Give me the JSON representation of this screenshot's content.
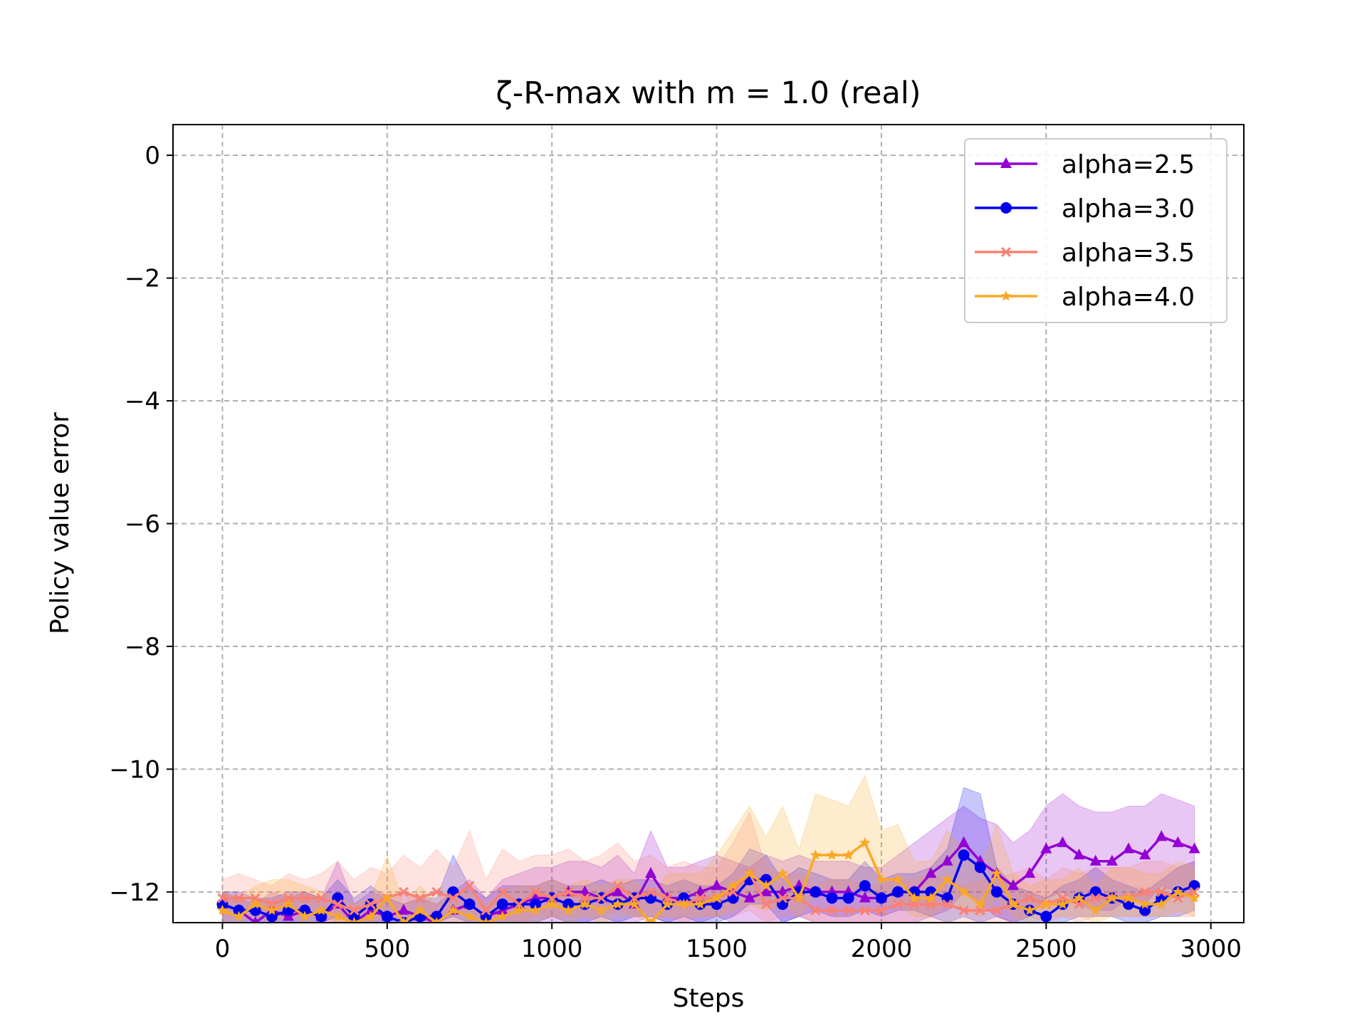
{
  "chart_data": {
    "type": "line",
    "title": "ζ-R-max with m = 1.0 (real)",
    "xlabel": "Steps",
    "ylabel": "Policy value error",
    "xlim": [
      -150,
      3100
    ],
    "ylim": [
      -12.5,
      0.5
    ],
    "xticks": [
      0,
      500,
      1000,
      1500,
      2000,
      2500,
      3000
    ],
    "xtick_labels": [
      "0",
      "500",
      "1000",
      "1500",
      "2000",
      "2500",
      "3000"
    ],
    "yticks": [
      0,
      -2,
      -4,
      -6,
      -8,
      -10,
      -12
    ],
    "ytick_labels": [
      "0",
      "−2",
      "−4",
      "−6",
      "−8",
      "−10",
      "−12"
    ],
    "grid": true,
    "legend_position": "top-right",
    "x": [
      0,
      50,
      100,
      150,
      200,
      250,
      300,
      350,
      400,
      450,
      500,
      550,
      600,
      650,
      700,
      750,
      800,
      850,
      900,
      950,
      1000,
      1050,
      1100,
      1150,
      1200,
      1250,
      1300,
      1350,
      1400,
      1450,
      1500,
      1550,
      1600,
      1650,
      1700,
      1750,
      1800,
      1850,
      1900,
      1950,
      2000,
      2050,
      2100,
      2150,
      2200,
      2250,
      2300,
      2350,
      2400,
      2450,
      2500,
      2550,
      2600,
      2650,
      2700,
      2750,
      2800,
      2850,
      2900,
      2950
    ],
    "series": [
      {
        "name": "alpha=2.5",
        "color": "#9400D3",
        "marker": "triangle",
        "values": [
          -12.2,
          -12.3,
          -12.5,
          -12.3,
          -12.4,
          -12.3,
          -12.4,
          -12.2,
          -12.5,
          -12.3,
          -12.4,
          -12.3,
          -12.4,
          -12.5,
          -12.3,
          -12.2,
          -12.4,
          -12.3,
          -12.2,
          -12.1,
          -12.1,
          -12.0,
          -12.0,
          -12.1,
          -12.0,
          -12.2,
          -11.7,
          -12.1,
          -12.1,
          -12.0,
          -11.9,
          -12.0,
          -12.1,
          -12.0,
          -12.0,
          -11.9,
          -12.0,
          -12.0,
          -12.0,
          -12.1,
          -12.1,
          -12.0,
          -12.0,
          -11.7,
          -11.5,
          -11.2,
          -11.5,
          -11.7,
          -11.9,
          -11.7,
          -11.3,
          -11.2,
          -11.4,
          -11.5,
          -11.5,
          -11.3,
          -11.4,
          -11.1,
          -11.2,
          -11.3
        ],
        "upper": [
          -12.0,
          -12.1,
          -12.2,
          -12.0,
          -12.1,
          -12.0,
          -12.1,
          -11.5,
          -12.2,
          -12.0,
          -12.1,
          -12.0,
          -12.1,
          -12.2,
          -12.0,
          -11.8,
          -12.1,
          -11.8,
          -11.7,
          -11.6,
          -11.6,
          -11.5,
          -11.5,
          -11.6,
          -11.4,
          -11.7,
          -11.0,
          -11.6,
          -11.6,
          -11.5,
          -11.4,
          -11.5,
          -11.6,
          -11.4,
          -11.5,
          -11.4,
          -11.5,
          -11.5,
          -11.5,
          -11.6,
          -11.6,
          -11.4,
          -11.2,
          -11.0,
          -10.8,
          -10.6,
          -10.8,
          -10.9,
          -11.2,
          -11.0,
          -10.6,
          -10.4,
          -10.6,
          -10.7,
          -10.7,
          -10.6,
          -10.6,
          -10.4,
          -10.5,
          -10.6
        ],
        "lower": [
          -12.5,
          -12.5,
          -12.5,
          -12.5,
          -12.5,
          -12.5,
          -12.5,
          -12.5,
          -12.5,
          -12.5,
          -12.5,
          -12.5,
          -12.5,
          -12.5,
          -12.5,
          -12.5,
          -12.5,
          -12.5,
          -12.5,
          -12.5,
          -12.5,
          -12.5,
          -12.5,
          -12.5,
          -12.5,
          -12.5,
          -12.4,
          -12.5,
          -12.5,
          -12.5,
          -12.4,
          -12.5,
          -12.5,
          -12.5,
          -12.5,
          -12.4,
          -12.5,
          -12.5,
          -12.5,
          -12.5,
          -12.5,
          -12.5,
          -12.5,
          -12.4,
          -12.3,
          -12.0,
          -12.2,
          -12.4,
          -12.5,
          -12.4,
          -12.1,
          -12.0,
          -12.2,
          -12.3,
          -12.3,
          -12.1,
          -12.2,
          -11.9,
          -12.0,
          -12.1
        ]
      },
      {
        "name": "alpha=3.0",
        "color": "#0000EE",
        "marker": "circle",
        "values": [
          -12.2,
          -12.3,
          -12.3,
          -12.4,
          -12.3,
          -12.3,
          -12.4,
          -12.1,
          -12.4,
          -12.2,
          -12.4,
          -12.5,
          -12.4,
          -12.4,
          -12.0,
          -12.2,
          -12.4,
          -12.2,
          -12.2,
          -12.2,
          -12.1,
          -12.2,
          -12.2,
          -12.1,
          -12.2,
          -12.1,
          -12.1,
          -12.2,
          -12.1,
          -12.2,
          -12.2,
          -12.1,
          -11.8,
          -11.8,
          -12.2,
          -12.0,
          -12.0,
          -12.1,
          -12.1,
          -11.9,
          -12.1,
          -12.0,
          -12.0,
          -12.0,
          -12.1,
          -11.4,
          -11.6,
          -12.0,
          -12.2,
          -12.3,
          -12.4,
          -12.2,
          -12.1,
          -12.0,
          -12.1,
          -12.2,
          -12.3,
          -12.1,
          -12.0,
          -11.9
        ],
        "upper": [
          -12.0,
          -12.0,
          -12.1,
          -12.1,
          -12.0,
          -12.0,
          -12.1,
          -11.8,
          -12.1,
          -11.9,
          -12.1,
          -12.2,
          -12.1,
          -12.1,
          -11.4,
          -11.9,
          -12.1,
          -11.9,
          -11.9,
          -11.9,
          -11.8,
          -11.9,
          -11.9,
          -11.8,
          -11.9,
          -11.8,
          -11.8,
          -11.9,
          -11.8,
          -11.9,
          -11.9,
          -11.7,
          -11.3,
          -11.4,
          -11.8,
          -11.6,
          -11.7,
          -11.8,
          -11.8,
          -11.5,
          -11.8,
          -11.7,
          -11.7,
          -11.6,
          -11.3,
          -10.3,
          -10.4,
          -11.6,
          -11.9,
          -12.0,
          -12.1,
          -11.9,
          -11.8,
          -11.6,
          -11.8,
          -11.9,
          -12.0,
          -11.8,
          -11.6,
          -11.5
        ],
        "lower": [
          -12.5,
          -12.5,
          -12.5,
          -12.5,
          -12.5,
          -12.5,
          -12.5,
          -12.4,
          -12.5,
          -12.5,
          -12.5,
          -12.5,
          -12.5,
          -12.5,
          -12.4,
          -12.5,
          -12.5,
          -12.5,
          -12.5,
          -12.5,
          -12.4,
          -12.5,
          -12.5,
          -12.4,
          -12.5,
          -12.4,
          -12.4,
          -12.5,
          -12.4,
          -12.5,
          -12.5,
          -12.4,
          -12.2,
          -12.2,
          -12.5,
          -12.4,
          -12.3,
          -12.4,
          -12.4,
          -12.3,
          -12.4,
          -12.3,
          -12.3,
          -12.4,
          -12.5,
          -12.4,
          -12.5,
          -12.4,
          -12.5,
          -12.5,
          -12.5,
          -12.5,
          -12.4,
          -12.4,
          -12.4,
          -12.5,
          -12.5,
          -12.4,
          -12.4,
          -12.3
        ]
      },
      {
        "name": "alpha=3.5",
        "color": "#FA8072",
        "marker": "x",
        "values": [
          -12.1,
          -12.1,
          -12.1,
          -12.2,
          -12.1,
          -12.1,
          -12.1,
          -12.2,
          -12.3,
          -12.2,
          -12.1,
          -12.0,
          -12.1,
          -12.0,
          -12.1,
          -11.9,
          -12.3,
          -12.0,
          -12.2,
          -12.0,
          -12.1,
          -12.0,
          -12.1,
          -12.1,
          -11.9,
          -12.1,
          -12.0,
          -12.1,
          -12.2,
          -12.1,
          -12.1,
          -12.0,
          -11.7,
          -12.2,
          -12.1,
          -12.1,
          -12.3,
          -12.3,
          -12.3,
          -12.3,
          -12.3,
          -12.2,
          -12.2,
          -12.2,
          -12.2,
          -12.3,
          -12.3,
          -12.3,
          -12.2,
          -12.1,
          -12.2,
          -12.1,
          -12.2,
          -12.1,
          -12.1,
          -12.1,
          -12.0,
          -12.0,
          -12.1,
          -12.0
        ],
        "upper": [
          -11.8,
          -11.7,
          -11.8,
          -11.9,
          -11.7,
          -11.8,
          -11.7,
          -11.5,
          -11.8,
          -11.6,
          -11.7,
          -11.4,
          -11.6,
          -11.3,
          -11.6,
          -11.0,
          -11.8,
          -11.3,
          -11.5,
          -11.4,
          -11.4,
          -11.3,
          -11.5,
          -11.4,
          -11.2,
          -11.5,
          -11.4,
          -11.6,
          -11.5,
          -11.6,
          -11.6,
          -11.2,
          -10.7,
          -11.6,
          -11.7,
          -11.7,
          -11.9,
          -11.8,
          -11.8,
          -11.9,
          -11.9,
          -11.8,
          -11.8,
          -11.7,
          -11.8,
          -11.9,
          -11.8,
          -11.8,
          -11.7,
          -11.6,
          -11.8,
          -11.6,
          -11.7,
          -11.6,
          -11.6,
          -11.6,
          -11.5,
          -11.5,
          -11.6,
          -11.5
        ],
        "lower": [
          -12.4,
          -12.4,
          -12.4,
          -12.5,
          -12.4,
          -12.4,
          -12.4,
          -12.5,
          -12.5,
          -12.5,
          -12.4,
          -12.4,
          -12.4,
          -12.4,
          -12.4,
          -12.3,
          -12.5,
          -12.4,
          -12.5,
          -12.4,
          -12.4,
          -12.4,
          -12.4,
          -12.4,
          -12.3,
          -12.4,
          -12.4,
          -12.4,
          -12.5,
          -12.4,
          -12.4,
          -12.4,
          -12.3,
          -12.5,
          -12.4,
          -12.4,
          -12.5,
          -12.5,
          -12.5,
          -12.5,
          -12.5,
          -12.5,
          -12.5,
          -12.5,
          -12.5,
          -12.5,
          -12.5,
          -12.5,
          -12.5,
          -12.4,
          -12.5,
          -12.4,
          -12.5,
          -12.4,
          -12.4,
          -12.4,
          -12.4,
          -12.4,
          -12.4,
          -12.4
        ]
      },
      {
        "name": "alpha=4.0",
        "color": "#F9A825",
        "marker": "star",
        "values": [
          -12.3,
          -12.4,
          -12.2,
          -12.3,
          -12.2,
          -12.4,
          -12.3,
          -12.4,
          -12.5,
          -12.4,
          -12.1,
          -12.5,
          -12.3,
          -12.5,
          -12.3,
          -12.4,
          -12.5,
          -12.4,
          -12.3,
          -12.3,
          -12.2,
          -12.3,
          -12.2,
          -12.3,
          -12.2,
          -12.2,
          -12.5,
          -12.2,
          -12.2,
          -12.2,
          -12.1,
          -11.9,
          -11.7,
          -11.9,
          -11.7,
          -12.1,
          -11.4,
          -11.4,
          -11.4,
          -11.2,
          -11.8,
          -11.8,
          -12.1,
          -12.1,
          -11.8,
          -12.0,
          -12.2,
          -11.7,
          -12.2,
          -12.3,
          -12.2,
          -12.2,
          -12.1,
          -12.3,
          -12.1,
          -12.1,
          -12.2,
          -12.2,
          -12.0,
          -12.1
        ],
        "upper": [
          -12.0,
          -12.1,
          -11.9,
          -11.8,
          -11.8,
          -11.9,
          -12.0,
          -12.1,
          -12.2,
          -12.1,
          -11.4,
          -12.2,
          -11.9,
          -12.2,
          -11.9,
          -12.0,
          -12.2,
          -12.0,
          -11.9,
          -11.9,
          -11.8,
          -11.9,
          -11.8,
          -11.9,
          -11.8,
          -11.8,
          -12.1,
          -11.7,
          -11.7,
          -11.7,
          -11.4,
          -11.0,
          -10.6,
          -11.1,
          -10.6,
          -11.3,
          -10.4,
          -10.5,
          -10.6,
          -10.1,
          -11.0,
          -10.9,
          -11.5,
          -11.5,
          -11.0,
          -11.3,
          -11.6,
          -10.9,
          -11.7,
          -11.9,
          -11.8,
          -11.8,
          -11.6,
          -11.9,
          -11.6,
          -11.6,
          -11.7,
          -11.7,
          -11.5,
          -11.6
        ],
        "lower": [
          -12.5,
          -12.5,
          -12.4,
          -12.5,
          -12.4,
          -12.5,
          -12.5,
          -12.5,
          -12.5,
          -12.5,
          -12.4,
          -12.5,
          -12.5,
          -12.5,
          -12.5,
          -12.5,
          -12.5,
          -12.5,
          -12.5,
          -12.5,
          -12.4,
          -12.5,
          -12.4,
          -12.5,
          -12.4,
          -12.4,
          -12.5,
          -12.4,
          -12.4,
          -12.4,
          -12.4,
          -12.3,
          -12.2,
          -12.3,
          -12.2,
          -12.4,
          -12.0,
          -12.0,
          -12.0,
          -11.9,
          -12.2,
          -12.2,
          -12.4,
          -12.4,
          -12.2,
          -12.3,
          -12.4,
          -12.1,
          -12.4,
          -12.5,
          -12.4,
          -12.4,
          -12.4,
          -12.5,
          -12.4,
          -12.4,
          -12.4,
          -12.4,
          -12.3,
          -12.4
        ]
      }
    ]
  }
}
